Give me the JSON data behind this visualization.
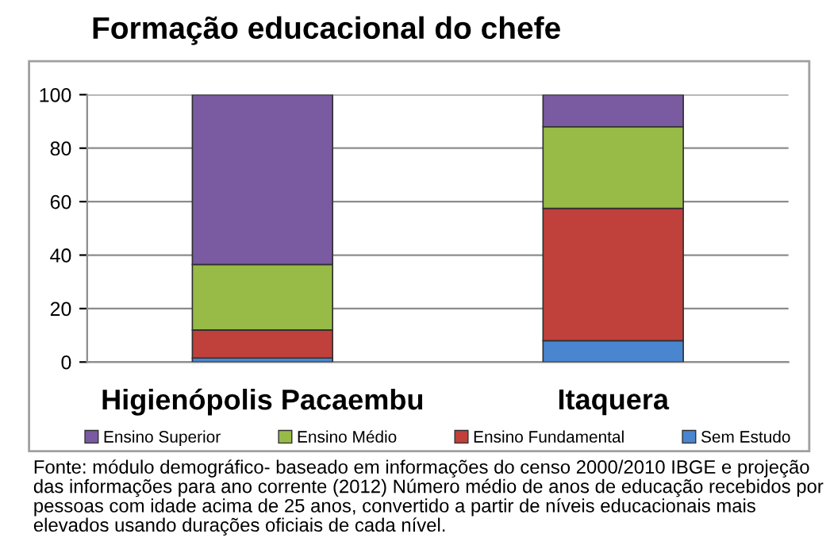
{
  "chart_data": {
    "type": "bar",
    "title": "Formação educacional do chefe",
    "categories": [
      "Higienópolis Pacaembu",
      "Itaquera"
    ],
    "stacked": true,
    "series": [
      {
        "name": "Sem Estudo",
        "color": "#4a86d0",
        "values": [
          1.5,
          8
        ]
      },
      {
        "name": "Ensino Fundamental",
        "color": "#c0403c",
        "values": [
          10.5,
          49.5
        ]
      },
      {
        "name": "Ensino Médio",
        "color": "#98bb48",
        "values": [
          24.5,
          30.5
        ]
      },
      {
        "name": "Ensino Superior",
        "color": "#7a5aa0",
        "values": [
          63.5,
          12
        ]
      }
    ],
    "ylim": [
      0,
      100
    ],
    "yticks": [
      0,
      20,
      40,
      60,
      80,
      100
    ],
    "grid": "y",
    "legend": "bottom",
    "annotations": [
      "Fonte: módulo demográfico- baseado em informações do censo 2000/2010 IBGE e projeção das informações para ano corrente (2012) Número médio de anos de educação recebidos por pessoas com idade acima de 25 anos, convertido a partir de níveis educacionais mais elevados usando durações oficiais de cada nível."
    ]
  }
}
